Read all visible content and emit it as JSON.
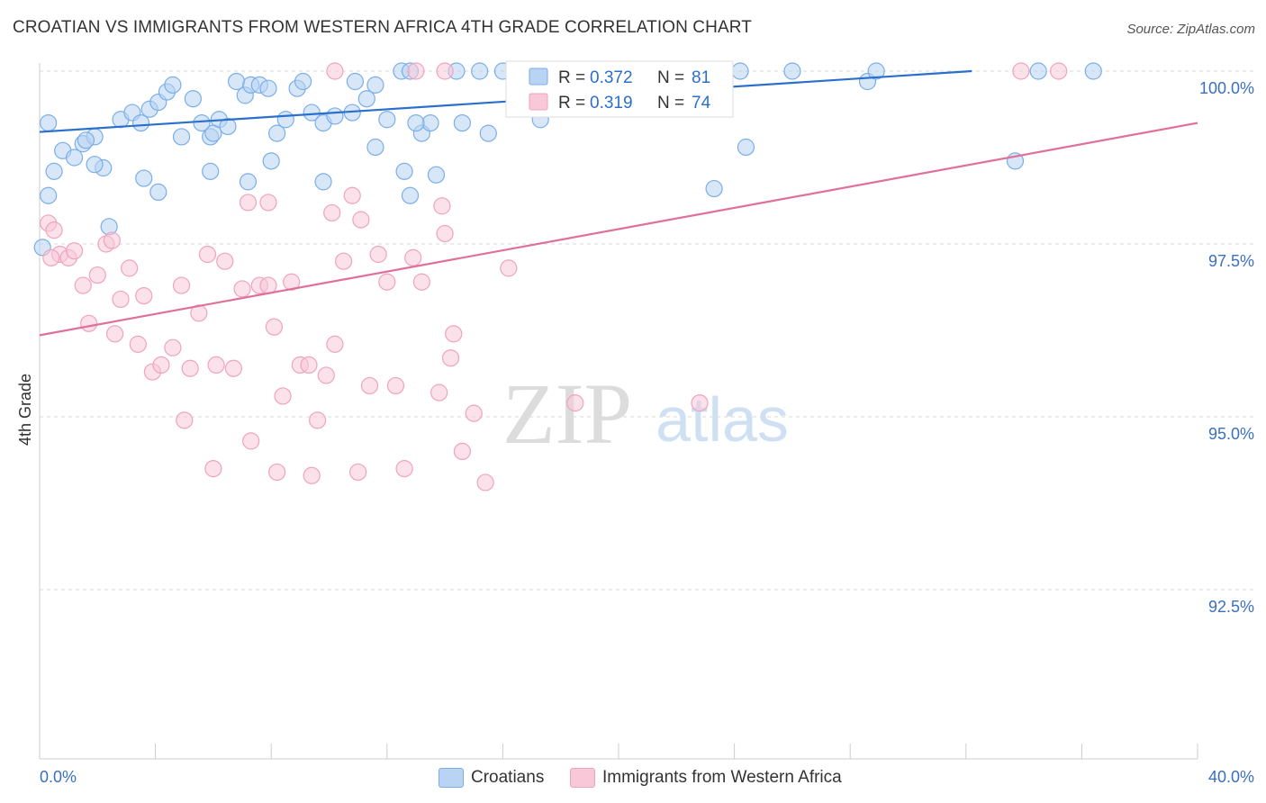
{
  "title": "CROATIAN VS IMMIGRANTS FROM WESTERN AFRICA 4TH GRADE CORRELATION CHART",
  "source": "Source: ZipAtlas.com",
  "watermark": {
    "zip": "ZIP",
    "atlas": "atlas"
  },
  "chart_data": {
    "type": "scatter",
    "title": "CROATIAN VS IMMIGRANTS FROM WESTERN AFRICA 4TH GRADE CORRELATION CHART",
    "xlabel": "",
    "ylabel": "4th Grade",
    "xlim": [
      0,
      40
    ],
    "ylim": [
      90.2,
      100.4
    ],
    "x_tick_labels": [
      "0.0%",
      "40.0%"
    ],
    "y_ticks": [
      92.5,
      95.0,
      97.5,
      100.0
    ],
    "y_tick_labels": [
      "92.5%",
      "95.0%",
      "97.5%",
      "100.0%"
    ],
    "grid": true,
    "legend_position": "top-center",
    "series": [
      {
        "name": "Croatians",
        "color": "#7aaee8",
        "fill": "#b8d3f3",
        "line_color": "#2b6fcc",
        "R": "0.372",
        "N": "81",
        "trend": {
          "x0": 0,
          "y0": 99.12,
          "x1": 32.2,
          "y1": 100.0
        },
        "points": [
          [
            0.3,
            99.25
          ],
          [
            0.8,
            98.85
          ],
          [
            1.2,
            98.75
          ],
          [
            1.5,
            98.95
          ],
          [
            1.9,
            99.05
          ],
          [
            2.2,
            98.6
          ],
          [
            2.8,
            99.3
          ],
          [
            3.2,
            99.4
          ],
          [
            3.5,
            99.25
          ],
          [
            3.8,
            99.45
          ],
          [
            4.1,
            99.55
          ],
          [
            4.4,
            99.7
          ],
          [
            4.6,
            99.8
          ],
          [
            4.9,
            99.05
          ],
          [
            5.3,
            99.6
          ],
          [
            5.6,
            99.25
          ],
          [
            5.9,
            99.05
          ],
          [
            6.2,
            99.3
          ],
          [
            6.5,
            99.2
          ],
          [
            6.8,
            99.85
          ],
          [
            7.1,
            99.65
          ],
          [
            7.3,
            99.8
          ],
          [
            7.6,
            99.8
          ],
          [
            7.9,
            99.75
          ],
          [
            8.2,
            99.1
          ],
          [
            8.5,
            99.3
          ],
          [
            8.9,
            99.75
          ],
          [
            9.1,
            99.85
          ],
          [
            9.4,
            99.4
          ],
          [
            9.8,
            99.25
          ],
          [
            10.2,
            99.35
          ],
          [
            10.9,
            99.85
          ],
          [
            11.3,
            99.6
          ],
          [
            11.6,
            99.8
          ],
          [
            12.0,
            99.3
          ],
          [
            12.5,
            100.0
          ],
          [
            12.8,
            100.0
          ],
          [
            13.2,
            99.1
          ],
          [
            13.5,
            99.25
          ],
          [
            14.4,
            100.0
          ],
          [
            15.2,
            100.0
          ],
          [
            16.0,
            100.0
          ],
          [
            16.5,
            100.0
          ],
          [
            17.2,
            100.0
          ],
          [
            18.0,
            100.0
          ],
          [
            18.5,
            99.8
          ],
          [
            19.2,
            100.0
          ],
          [
            20.3,
            100.0
          ],
          [
            21.0,
            100.0
          ],
          [
            23.0,
            100.0
          ],
          [
            24.2,
            100.0
          ],
          [
            28.6,
            99.85
          ],
          [
            1.9,
            98.65
          ],
          [
            3.6,
            98.45
          ],
          [
            7.2,
            98.4
          ],
          [
            8.0,
            98.7
          ],
          [
            9.8,
            98.4
          ],
          [
            12.8,
            98.2
          ],
          [
            13.7,
            98.5
          ],
          [
            0.3,
            98.2
          ],
          [
            2.4,
            97.75
          ],
          [
            11.6,
            98.9
          ],
          [
            12.6,
            98.55
          ],
          [
            13.0,
            99.25
          ],
          [
            4.1,
            98.25
          ],
          [
            5.9,
            98.55
          ],
          [
            23.3,
            98.3
          ],
          [
            24.4,
            98.9
          ],
          [
            33.7,
            98.7
          ],
          [
            26.0,
            100.0
          ],
          [
            28.9,
            100.0
          ],
          [
            34.5,
            100.0
          ],
          [
            36.4,
            100.0
          ],
          [
            10.8,
            99.4
          ],
          [
            6.0,
            99.1
          ],
          [
            14.6,
            99.25
          ],
          [
            15.5,
            99.1
          ],
          [
            17.3,
            99.3
          ],
          [
            0.5,
            98.55
          ],
          [
            1.6,
            99.0
          ],
          [
            0.1,
            97.45
          ]
        ]
      },
      {
        "name": "Immigrants from Western Africa",
        "color": "#f0a3bd",
        "fill": "#f8c8d8",
        "line_color": "#e0709a",
        "R": "0.319",
        "N": "74",
        "trend": {
          "x0": 0,
          "y0": 96.18,
          "x1": 40,
          "y1": 99.25
        },
        "points": [
          [
            0.3,
            97.8
          ],
          [
            0.5,
            97.7
          ],
          [
            0.7,
            97.35
          ],
          [
            1.0,
            97.3
          ],
          [
            1.2,
            97.4
          ],
          [
            1.5,
            96.9
          ],
          [
            1.7,
            96.35
          ],
          [
            2.0,
            97.05
          ],
          [
            2.3,
            97.5
          ],
          [
            2.5,
            97.55
          ],
          [
            2.8,
            96.7
          ],
          [
            3.1,
            97.15
          ],
          [
            3.4,
            96.05
          ],
          [
            3.6,
            96.75
          ],
          [
            3.9,
            95.65
          ],
          [
            4.2,
            95.75
          ],
          [
            4.6,
            96.0
          ],
          [
            4.9,
            96.9
          ],
          [
            5.2,
            95.7
          ],
          [
            5.5,
            96.5
          ],
          [
            5.8,
            97.35
          ],
          [
            6.1,
            95.75
          ],
          [
            6.4,
            97.25
          ],
          [
            6.7,
            95.7
          ],
          [
            7.0,
            96.85
          ],
          [
            7.3,
            94.65
          ],
          [
            7.6,
            96.9
          ],
          [
            7.9,
            96.9
          ],
          [
            8.1,
            96.3
          ],
          [
            8.4,
            95.3
          ],
          [
            8.7,
            96.95
          ],
          [
            9.0,
            95.75
          ],
          [
            9.3,
            95.75
          ],
          [
            9.6,
            94.95
          ],
          [
            9.9,
            95.6
          ],
          [
            10.2,
            96.05
          ],
          [
            10.5,
            97.25
          ],
          [
            10.8,
            98.2
          ],
          [
            11.1,
            97.85
          ],
          [
            11.4,
            95.45
          ],
          [
            11.7,
            97.35
          ],
          [
            12.0,
            96.95
          ],
          [
            12.3,
            95.45
          ],
          [
            12.6,
            94.25
          ],
          [
            12.9,
            97.3
          ],
          [
            13.2,
            96.95
          ],
          [
            13.8,
            95.35
          ],
          [
            14.2,
            95.85
          ],
          [
            14.6,
            94.5
          ],
          [
            15.0,
            95.05
          ],
          [
            15.4,
            94.05
          ],
          [
            16.2,
            97.15
          ],
          [
            5.0,
            94.95
          ],
          [
            6.0,
            94.25
          ],
          [
            8.2,
            94.2
          ],
          [
            9.4,
            94.15
          ],
          [
            11.0,
            94.2
          ],
          [
            7.2,
            98.1
          ],
          [
            7.9,
            98.1
          ],
          [
            10.1,
            97.95
          ],
          [
            13.9,
            98.05
          ],
          [
            14.0,
            97.65
          ],
          [
            14.3,
            96.2
          ],
          [
            18.5,
            95.2
          ],
          [
            22.8,
            95.2
          ],
          [
            10.2,
            100.0
          ],
          [
            13.0,
            100.0
          ],
          [
            14.0,
            100.0
          ],
          [
            17.9,
            100.0
          ],
          [
            20.0,
            100.0
          ],
          [
            33.9,
            100.0
          ],
          [
            35.2,
            100.0
          ],
          [
            0.4,
            97.3
          ],
          [
            2.6,
            96.2
          ]
        ]
      }
    ]
  }
}
